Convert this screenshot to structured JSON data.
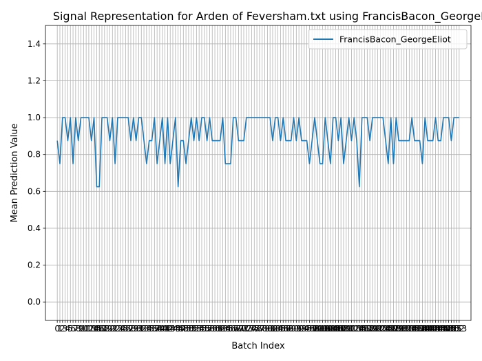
{
  "chart_data": {
    "type": "line",
    "title": "Signal Representation for Arden of Feversham.txt using FrancisBacon_GeorgeEliot",
    "xlabel": "Batch Index",
    "ylabel": "Mean Prediction Value",
    "ylim": [
      -0.1,
      1.5
    ],
    "xlim": [
      -4.5,
      157.5
    ],
    "yticks": [
      "0.0",
      "0.2",
      "0.4",
      "0.6",
      "0.8",
      "1.0",
      "1.2",
      "1.4"
    ],
    "xtick_labels_visible": [
      "0",
      "1",
      "2",
      "3",
      "4",
      "5",
      "6",
      "7",
      "8",
      "9",
      "10",
      "11",
      "12",
      "13",
      "14",
      "15",
      "16",
      "17",
      "18",
      "19",
      "20",
      "21",
      "22",
      "23",
      "24",
      "25",
      "26",
      "27",
      "28",
      "29",
      "30",
      "31",
      "32",
      "33",
      "34",
      "35",
      "36",
      "37",
      "38",
      "39",
      "40",
      "41",
      "42",
      "43",
      "44",
      "45",
      "46",
      "47",
      "48",
      "49",
      "50",
      "51",
      "52",
      "53",
      "54",
      "55",
      "56",
      "57",
      "58",
      "59",
      "60",
      "61",
      "62",
      "63",
      "64",
      "65",
      "66",
      "67",
      "68",
      "69",
      "70",
      "71",
      "72",
      "73",
      "74",
      "75",
      "76",
      "77",
      "78",
      "79",
      "80",
      "81",
      "82",
      "83",
      "84",
      "85",
      "86",
      "87",
      "88",
      "89",
      "90",
      "91",
      "92",
      "93",
      "94",
      "95",
      "96",
      "97",
      "98",
      "99",
      "100",
      "101",
      "102",
      "103",
      "104",
      "105",
      "106",
      "107",
      "108",
      "109",
      "110",
      "111",
      "112",
      "113",
      "114",
      "115",
      "116",
      "117",
      "118",
      "119",
      "120",
      "121",
      "122",
      "123",
      "124",
      "125",
      "126",
      "127",
      "128",
      "129",
      "130",
      "131",
      "132",
      "133",
      "134",
      "135",
      "136",
      "137",
      "138",
      "139",
      "140",
      "141",
      "142",
      "143",
      "144",
      "145",
      "146",
      "147",
      "148",
      "149",
      "150",
      "151",
      "152",
      "153"
    ],
    "grid": true,
    "legend_position": "top-right",
    "series": [
      {
        "name": "FrancisBacon_GeorgeEliot",
        "color": "#1f77b4",
        "values": [
          0.875,
          0.75,
          1.0,
          1.0,
          0.875,
          1.0,
          0.75,
          1.0,
          0.875,
          1.0,
          1.0,
          1.0,
          1.0,
          0.875,
          1.0,
          0.625,
          0.625,
          1.0,
          1.0,
          1.0,
          0.875,
          1.0,
          0.75,
          1.0,
          1.0,
          1.0,
          1.0,
          1.0,
          0.875,
          1.0,
          0.875,
          1.0,
          1.0,
          0.875,
          0.75,
          0.875,
          0.875,
          1.0,
          0.75,
          0.875,
          1.0,
          0.75,
          1.0,
          0.75,
          0.875,
          1.0,
          0.625,
          0.875,
          0.875,
          0.75,
          0.875,
          1.0,
          0.875,
          1.0,
          0.875,
          1.0,
          1.0,
          0.875,
          1.0,
          0.875,
          0.875,
          0.875,
          0.875,
          1.0,
          0.75,
          0.75,
          0.75,
          1.0,
          1.0,
          0.875,
          0.875,
          0.875,
          1.0,
          1.0,
          1.0,
          1.0,
          1.0,
          1.0,
          1.0,
          1.0,
          1.0,
          1.0,
          0.875,
          1.0,
          1.0,
          0.875,
          1.0,
          0.875,
          0.875,
          0.875,
          1.0,
          0.875,
          1.0,
          0.875,
          0.875,
          0.875,
          0.75,
          0.875,
          1.0,
          0.875,
          0.75,
          0.75,
          1.0,
          0.875,
          0.75,
          1.0,
          1.0,
          0.875,
          1.0,
          0.75,
          0.875,
          1.0,
          0.875,
          1.0,
          0.875,
          0.625,
          1.0,
          1.0,
          1.0,
          0.875,
          1.0,
          1.0,
          1.0,
          1.0,
          1.0,
          0.875,
          0.75,
          1.0,
          0.75,
          1.0,
          0.875,
          0.875,
          0.875,
          0.875,
          0.875,
          1.0,
          0.875,
          0.875,
          0.875,
          0.75,
          1.0,
          0.875,
          0.875,
          0.875,
          1.0,
          0.875,
          0.875,
          1.0,
          1.0,
          1.0,
          0.875,
          1.0,
          1.0,
          1.0
        ]
      }
    ]
  }
}
